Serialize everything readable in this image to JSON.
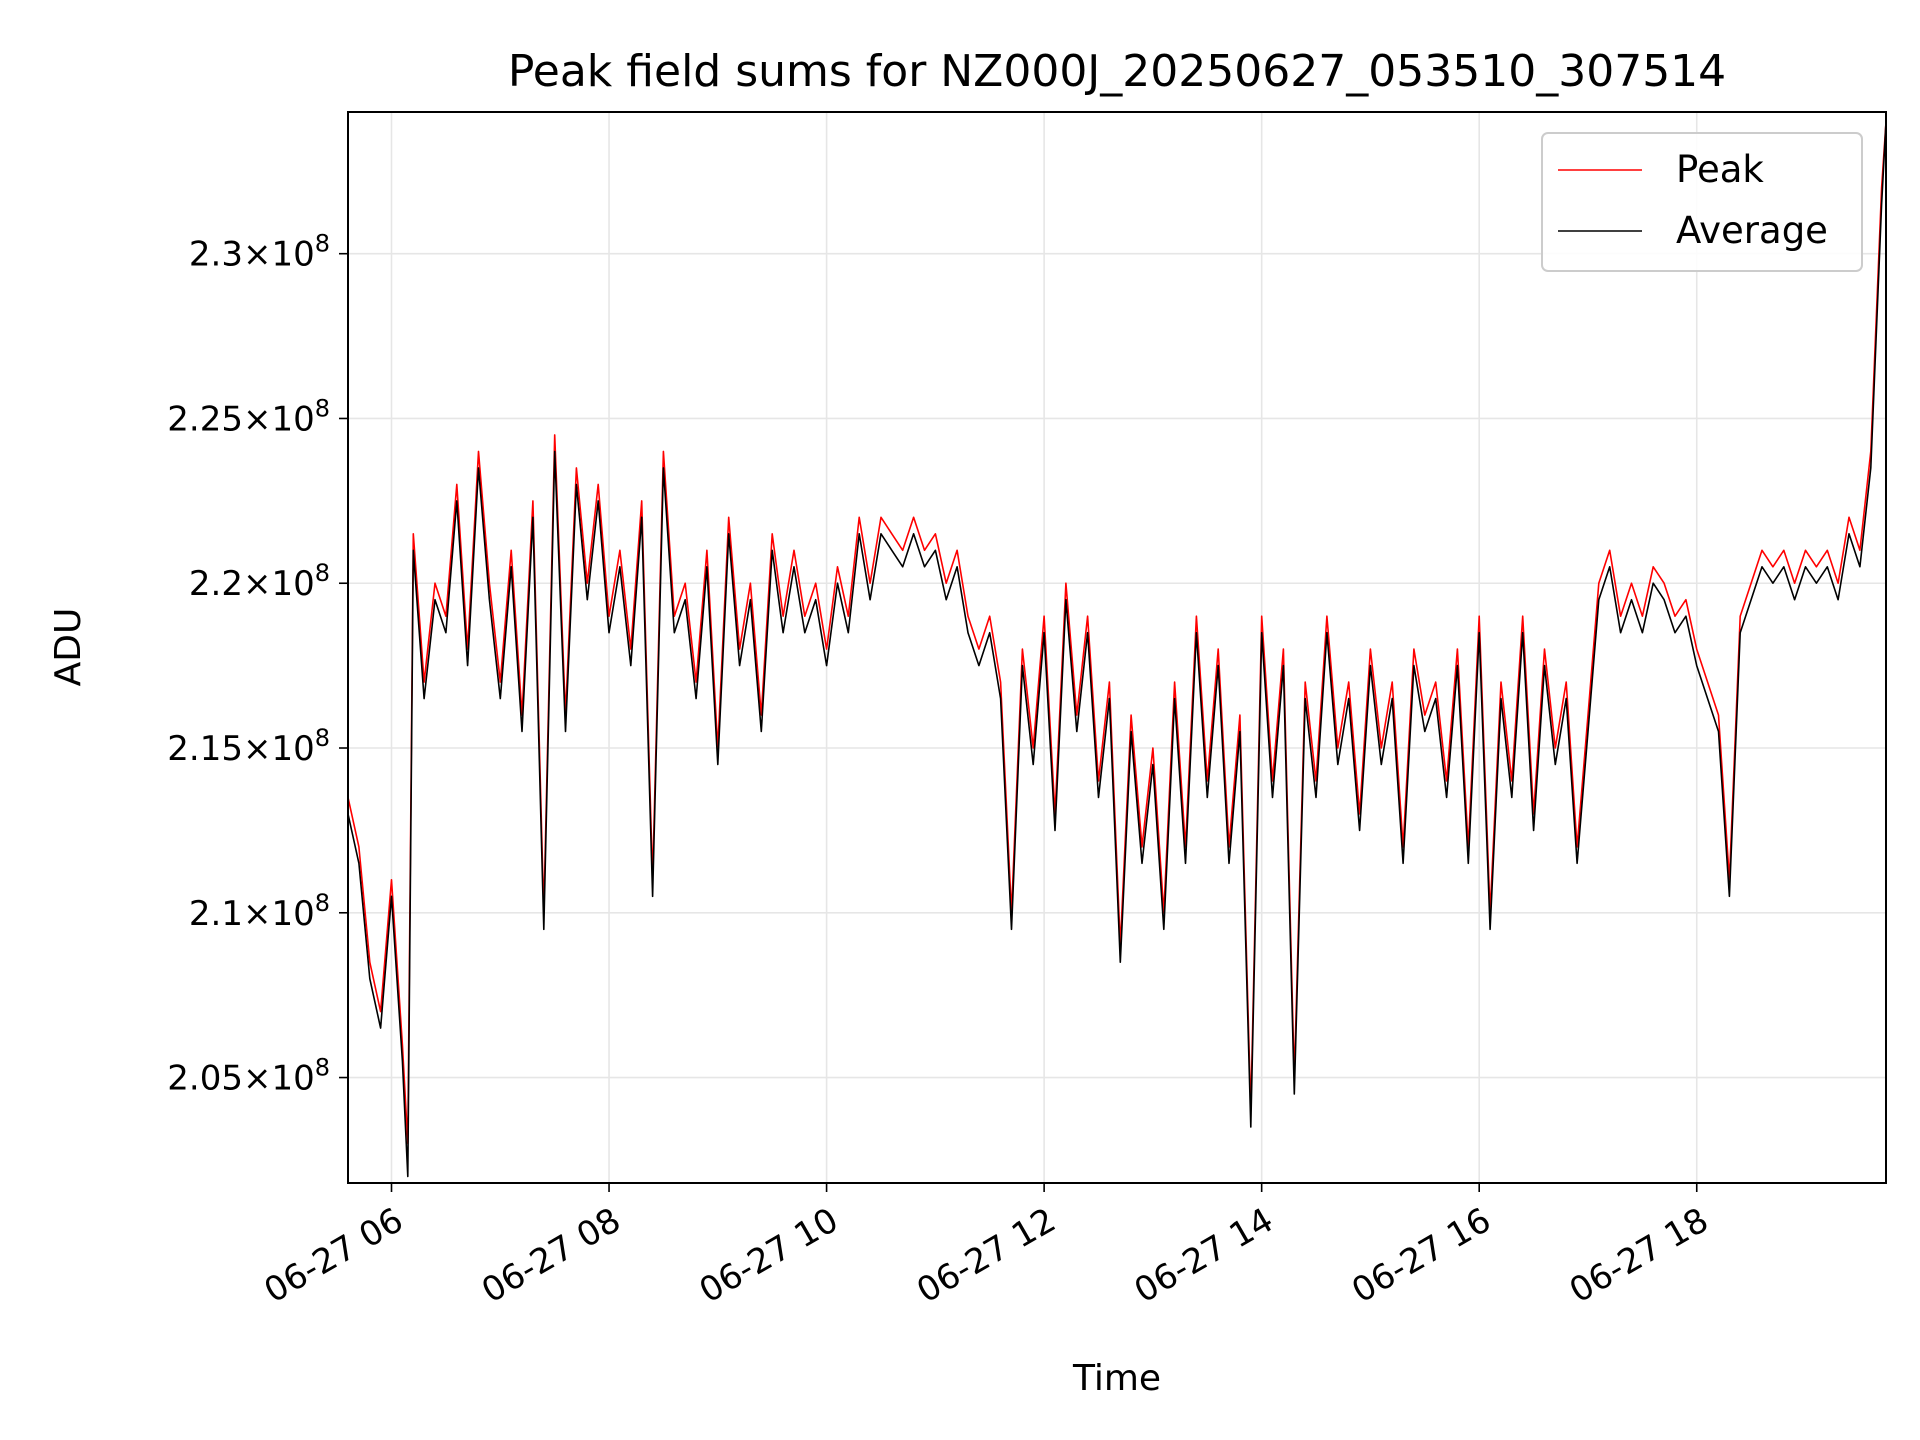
{
  "chart_data": {
    "type": "line",
    "title": "Peak field sums for NZ000J_20250627_053510_307514",
    "xlabel": "Time",
    "ylabel": "ADU",
    "x_start": "06-27 05:35",
    "x_end": "06-27 19:44",
    "xlim_hours": [
      5.6,
      19.74
    ],
    "ylim": [
      201800000.0,
      234300000.0
    ],
    "grid": true,
    "legend_position": "top-right",
    "x_ticks": [
      {
        "value": 6,
        "label": "06-27 06"
      },
      {
        "value": 8,
        "label": "06-27 08"
      },
      {
        "value": 10,
        "label": "06-27 10"
      },
      {
        "value": 12,
        "label": "06-27 12"
      },
      {
        "value": 14,
        "label": "06-27 14"
      },
      {
        "value": 16,
        "label": "06-27 16"
      },
      {
        "value": 18,
        "label": "06-27 18"
      }
    ],
    "y_ticks": [
      {
        "value": 205000000.0,
        "mantissa": "2.05",
        "base": "10",
        "exp": "8"
      },
      {
        "value": 210000000.0,
        "mantissa": "2.1",
        "base": "10",
        "exp": "8"
      },
      {
        "value": 215000000.0,
        "mantissa": "2.15",
        "base": "10",
        "exp": "8"
      },
      {
        "value": 220000000.0,
        "mantissa": "2.2",
        "base": "10",
        "exp": "8"
      },
      {
        "value": 225000000.0,
        "mantissa": "2.25",
        "base": "10",
        "exp": "8"
      },
      {
        "value": 230000000.0,
        "mantissa": "2.3",
        "base": "10",
        "exp": "8"
      }
    ],
    "series": [
      {
        "name": "Peak",
        "color": "#ff0000",
        "x_hours": [
          5.6,
          5.7,
          5.8,
          5.9,
          6.0,
          6.1,
          6.15,
          6.2,
          6.3,
          6.4,
          6.5,
          6.6,
          6.7,
          6.8,
          6.9,
          7.0,
          7.1,
          7.2,
          7.3,
          7.4,
          7.5,
          7.6,
          7.7,
          7.8,
          7.9,
          8.0,
          8.1,
          8.2,
          8.3,
          8.4,
          8.5,
          8.6,
          8.7,
          8.8,
          8.9,
          9.0,
          9.1,
          9.2,
          9.3,
          9.4,
          9.5,
          9.6,
          9.7,
          9.8,
          9.9,
          10.0,
          10.1,
          10.2,
          10.3,
          10.4,
          10.5,
          10.6,
          10.7,
          10.8,
          10.9,
          11.0,
          11.1,
          11.2,
          11.3,
          11.4,
          11.5,
          11.6,
          11.7,
          11.8,
          11.9,
          12.0,
          12.1,
          12.2,
          12.3,
          12.4,
          12.5,
          12.6,
          12.7,
          12.8,
          12.9,
          13.0,
          13.1,
          13.2,
          13.3,
          13.4,
          13.5,
          13.6,
          13.7,
          13.8,
          13.9,
          14.0,
          14.1,
          14.2,
          14.3,
          14.4,
          14.5,
          14.6,
          14.7,
          14.8,
          14.9,
          15.0,
          15.1,
          15.2,
          15.3,
          15.4,
          15.5,
          15.6,
          15.7,
          15.8,
          15.9,
          16.0,
          16.1,
          16.2,
          16.3,
          16.4,
          16.5,
          16.6,
          16.7,
          16.8,
          16.9,
          17.0,
          17.1,
          17.2,
          17.3,
          17.4,
          17.5,
          17.6,
          17.7,
          17.8,
          17.9,
          18.0,
          18.1,
          18.2,
          18.3,
          18.4,
          18.5,
          18.6,
          18.7,
          18.8,
          18.9,
          19.0,
          19.1,
          19.2,
          19.3,
          19.4,
          19.5,
          19.6,
          19.7,
          19.74
        ],
        "values": [
          213500000.0,
          212000000.0,
          208500000.0,
          207000000.0,
          211000000.0,
          206000000.0,
          203000000.0,
          221500000.0,
          217000000.0,
          220000000.0,
          219000000.0,
          223000000.0,
          218000000.0,
          224000000.0,
          220000000.0,
          217000000.0,
          221000000.0,
          216000000.0,
          222500000.0,
          210000000.0,
          224500000.0,
          216000000.0,
          223500000.0,
          220000000.0,
          223000000.0,
          219000000.0,
          221000000.0,
          218000000.0,
          222500000.0,
          211000000.0,
          224000000.0,
          219000000.0,
          220000000.0,
          217000000.0,
          221000000.0,
          215000000.0,
          222000000.0,
          218000000.0,
          220000000.0,
          216000000.0,
          221500000.0,
          219000000.0,
          221000000.0,
          219000000.0,
          220000000.0,
          218000000.0,
          220500000.0,
          219000000.0,
          222000000.0,
          220000000.0,
          222000000.0,
          221500000.0,
          221000000.0,
          222000000.0,
          221000000.0,
          221500000.0,
          220000000.0,
          221000000.0,
          219000000.0,
          218000000.0,
          219000000.0,
          217000000.0,
          210000000.0,
          218000000.0,
          215000000.0,
          219000000.0,
          213000000.0,
          220000000.0,
          216000000.0,
          219000000.0,
          214000000.0,
          217000000.0,
          209000000.0,
          216000000.0,
          212000000.0,
          215000000.0,
          210000000.0,
          217000000.0,
          212000000.0,
          219000000.0,
          214000000.0,
          218000000.0,
          212000000.0,
          216000000.0,
          204000000.0,
          219000000.0,
          214000000.0,
          218000000.0,
          205000000.0,
          217000000.0,
          214000000.0,
          219000000.0,
          215000000.0,
          217000000.0,
          213000000.0,
          218000000.0,
          215000000.0,
          217000000.0,
          212000000.0,
          218000000.0,
          216000000.0,
          217000000.0,
          214000000.0,
          218000000.0,
          212000000.0,
          219000000.0,
          210000000.0,
          217000000.0,
          214000000.0,
          219000000.0,
          213000000.0,
          218000000.0,
          215000000.0,
          217000000.0,
          212000000.0,
          216000000.0,
          220000000.0,
          221000000.0,
          219000000.0,
          220000000.0,
          219000000.0,
          220500000.0,
          220000000.0,
          219000000.0,
          219500000.0,
          218000000.0,
          217000000.0,
          216000000.0,
          211000000.0,
          219000000.0,
          220000000.0,
          221000000.0,
          220500000.0,
          221000000.0,
          220000000.0,
          221000000.0,
          220500000.0,
          221000000.0,
          220000000.0,
          222000000.0,
          221000000.0,
          224000000.0,
          232000000.0,
          234000000.0
        ]
      },
      {
        "name": "Average",
        "color": "#000000",
        "x_hours": [
          5.6,
          5.7,
          5.8,
          5.9,
          6.0,
          6.1,
          6.15,
          6.2,
          6.3,
          6.4,
          6.5,
          6.6,
          6.7,
          6.8,
          6.9,
          7.0,
          7.1,
          7.2,
          7.3,
          7.4,
          7.5,
          7.6,
          7.7,
          7.8,
          7.9,
          8.0,
          8.1,
          8.2,
          8.3,
          8.4,
          8.5,
          8.6,
          8.7,
          8.8,
          8.9,
          9.0,
          9.1,
          9.2,
          9.3,
          9.4,
          9.5,
          9.6,
          9.7,
          9.8,
          9.9,
          10.0,
          10.1,
          10.2,
          10.3,
          10.4,
          10.5,
          10.6,
          10.7,
          10.8,
          10.9,
          11.0,
          11.1,
          11.2,
          11.3,
          11.4,
          11.5,
          11.6,
          11.7,
          11.8,
          11.9,
          12.0,
          12.1,
          12.2,
          12.3,
          12.4,
          12.5,
          12.6,
          12.7,
          12.8,
          12.9,
          13.0,
          13.1,
          13.2,
          13.3,
          13.4,
          13.5,
          13.6,
          13.7,
          13.8,
          13.9,
          14.0,
          14.1,
          14.2,
          14.3,
          14.4,
          14.5,
          14.6,
          14.7,
          14.8,
          14.9,
          15.0,
          15.1,
          15.2,
          15.3,
          15.4,
          15.5,
          15.6,
          15.7,
          15.8,
          15.9,
          16.0,
          16.1,
          16.2,
          16.3,
          16.4,
          16.5,
          16.6,
          16.7,
          16.8,
          16.9,
          17.0,
          17.1,
          17.2,
          17.3,
          17.4,
          17.5,
          17.6,
          17.7,
          17.8,
          17.9,
          18.0,
          18.1,
          18.2,
          18.3,
          18.4,
          18.5,
          18.6,
          18.7,
          18.8,
          18.9,
          19.0,
          19.1,
          19.2,
          19.3,
          19.4,
          19.5,
          19.6,
          19.7,
          19.74
        ],
        "values": [
          213000000.0,
          211500000.0,
          208000000.0,
          206500000.0,
          210500000.0,
          205500000.0,
          202000000.0,
          221000000.0,
          216500000.0,
          219500000.0,
          218500000.0,
          222500000.0,
          217500000.0,
          223500000.0,
          219500000.0,
          216500000.0,
          220500000.0,
          215500000.0,
          222000000.0,
          209500000.0,
          224000000.0,
          215500000.0,
          223000000.0,
          219500000.0,
          222500000.0,
          218500000.0,
          220500000.0,
          217500000.0,
          222000000.0,
          210500000.0,
          223500000.0,
          218500000.0,
          219500000.0,
          216500000.0,
          220500000.0,
          214500000.0,
          221500000.0,
          217500000.0,
          219500000.0,
          215500000.0,
          221000000.0,
          218500000.0,
          220500000.0,
          218500000.0,
          219500000.0,
          217500000.0,
          220000000.0,
          218500000.0,
          221500000.0,
          219500000.0,
          221500000.0,
          221000000.0,
          220500000.0,
          221500000.0,
          220500000.0,
          221000000.0,
          219500000.0,
          220500000.0,
          218500000.0,
          217500000.0,
          218500000.0,
          216500000.0,
          209500000.0,
          217500000.0,
          214500000.0,
          218500000.0,
          212500000.0,
          219500000.0,
          215500000.0,
          218500000.0,
          213500000.0,
          216500000.0,
          208500000.0,
          215500000.0,
          211500000.0,
          214500000.0,
          209500000.0,
          216500000.0,
          211500000.0,
          218500000.0,
          213500000.0,
          217500000.0,
          211500000.0,
          215500000.0,
          203500000.0,
          218500000.0,
          213500000.0,
          217500000.0,
          204500000.0,
          216500000.0,
          213500000.0,
          218500000.0,
          214500000.0,
          216500000.0,
          212500000.0,
          217500000.0,
          214500000.0,
          216500000.0,
          211500000.0,
          217500000.0,
          215500000.0,
          216500000.0,
          213500000.0,
          217500000.0,
          211500000.0,
          218500000.0,
          209500000.0,
          216500000.0,
          213500000.0,
          218500000.0,
          212500000.0,
          217500000.0,
          214500000.0,
          216500000.0,
          211500000.0,
          215500000.0,
          219500000.0,
          220500000.0,
          218500000.0,
          219500000.0,
          218500000.0,
          220000000.0,
          219500000.0,
          218500000.0,
          219000000.0,
          217500000.0,
          216500000.0,
          215500000.0,
          210500000.0,
          218500000.0,
          219500000.0,
          220500000.0,
          220000000.0,
          220500000.0,
          219500000.0,
          220500000.0,
          220000000.0,
          220500000.0,
          219500000.0,
          221500000.0,
          220500000.0,
          223500000.0,
          231500000.0,
          234000000.0
        ]
      }
    ]
  }
}
